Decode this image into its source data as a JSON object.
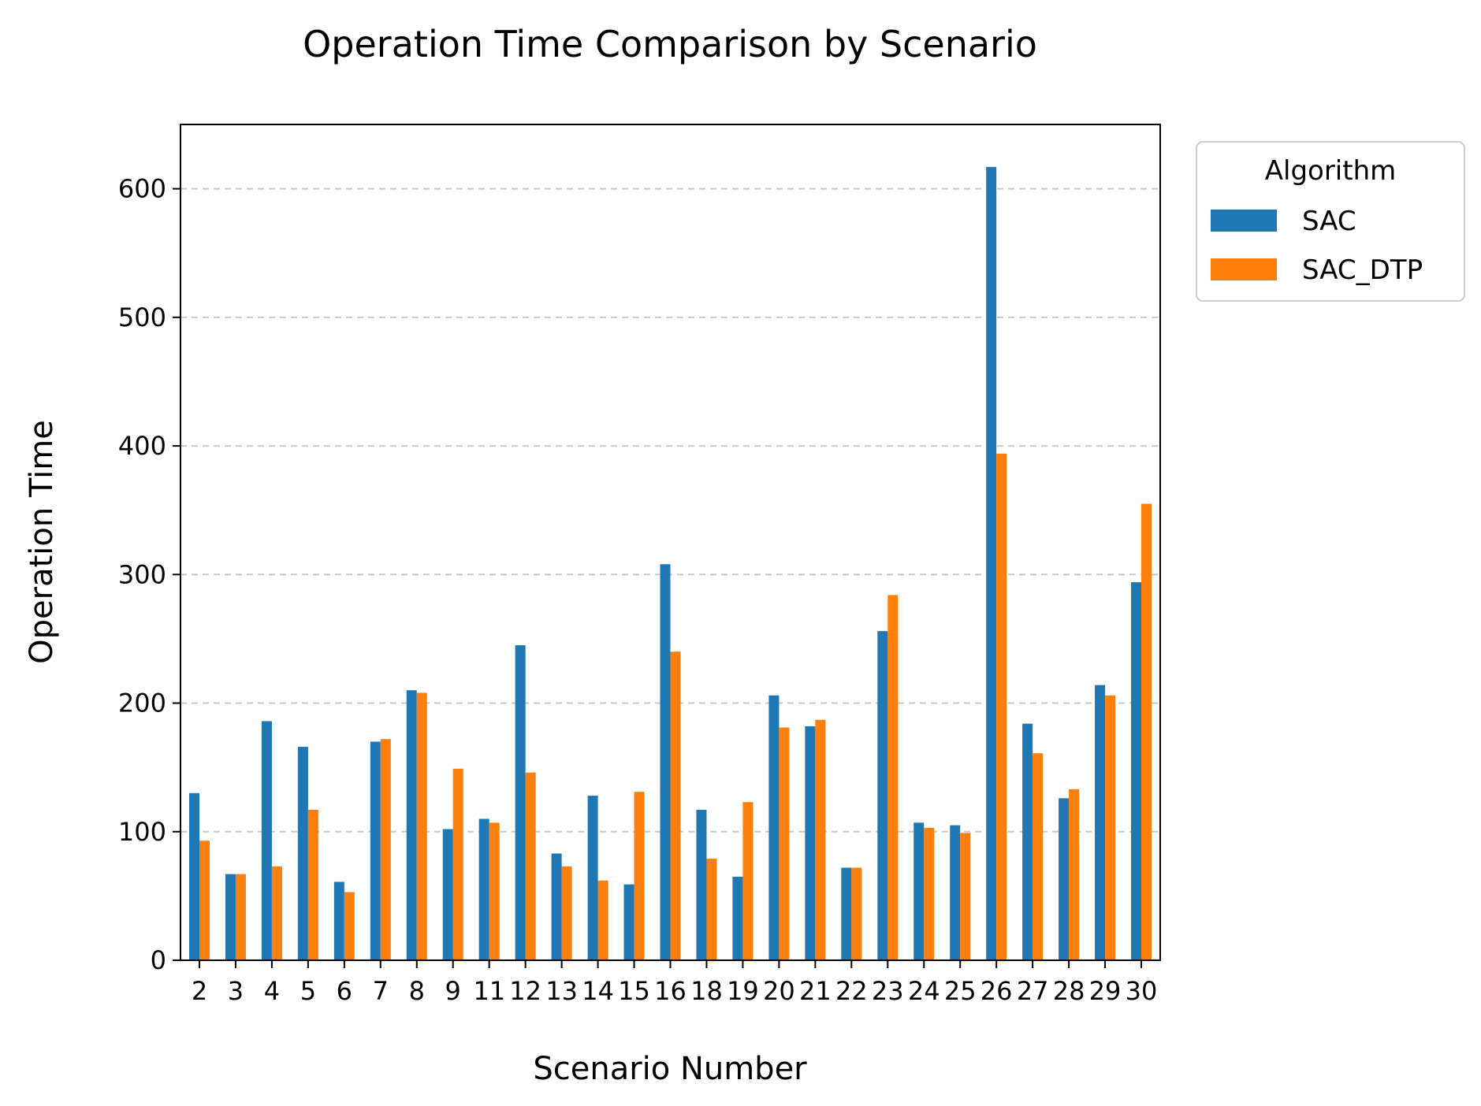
{
  "chart_data": {
    "type": "bar",
    "title": "Operation Time Comparison by Scenario",
    "xlabel": "Scenario Number",
    "ylabel": "Operation Time",
    "ylim": [
      0,
      650
    ],
    "yticks": [
      0,
      100,
      200,
      300,
      400,
      500,
      600
    ],
    "grid": "y-dashed",
    "legend_title": "Algorithm",
    "legend_position": "outside-top-right",
    "categories": [
      "2",
      "3",
      "4",
      "5",
      "6",
      "7",
      "8",
      "9",
      "11",
      "12",
      "13",
      "14",
      "15",
      "16",
      "18",
      "19",
      "20",
      "21",
      "22",
      "23",
      "24",
      "25",
      "26",
      "27",
      "28",
      "29",
      "30"
    ],
    "series": [
      {
        "name": "SAC",
        "color": "#1f77b4",
        "values": [
          130,
          67,
          186,
          166,
          61,
          170,
          210,
          102,
          110,
          245,
          83,
          128,
          59,
          308,
          117,
          65,
          206,
          182,
          72,
          256,
          107,
          105,
          617,
          184,
          126,
          214,
          294
        ]
      },
      {
        "name": "SAC_DTP",
        "color": "#ff7f0e",
        "values": [
          93,
          67,
          73,
          117,
          53,
          172,
          208,
          149,
          107,
          146,
          73,
          62,
          131,
          240,
          79,
          123,
          181,
          187,
          72,
          284,
          103,
          99,
          394,
          161,
          133,
          206,
          355
        ]
      }
    ]
  }
}
